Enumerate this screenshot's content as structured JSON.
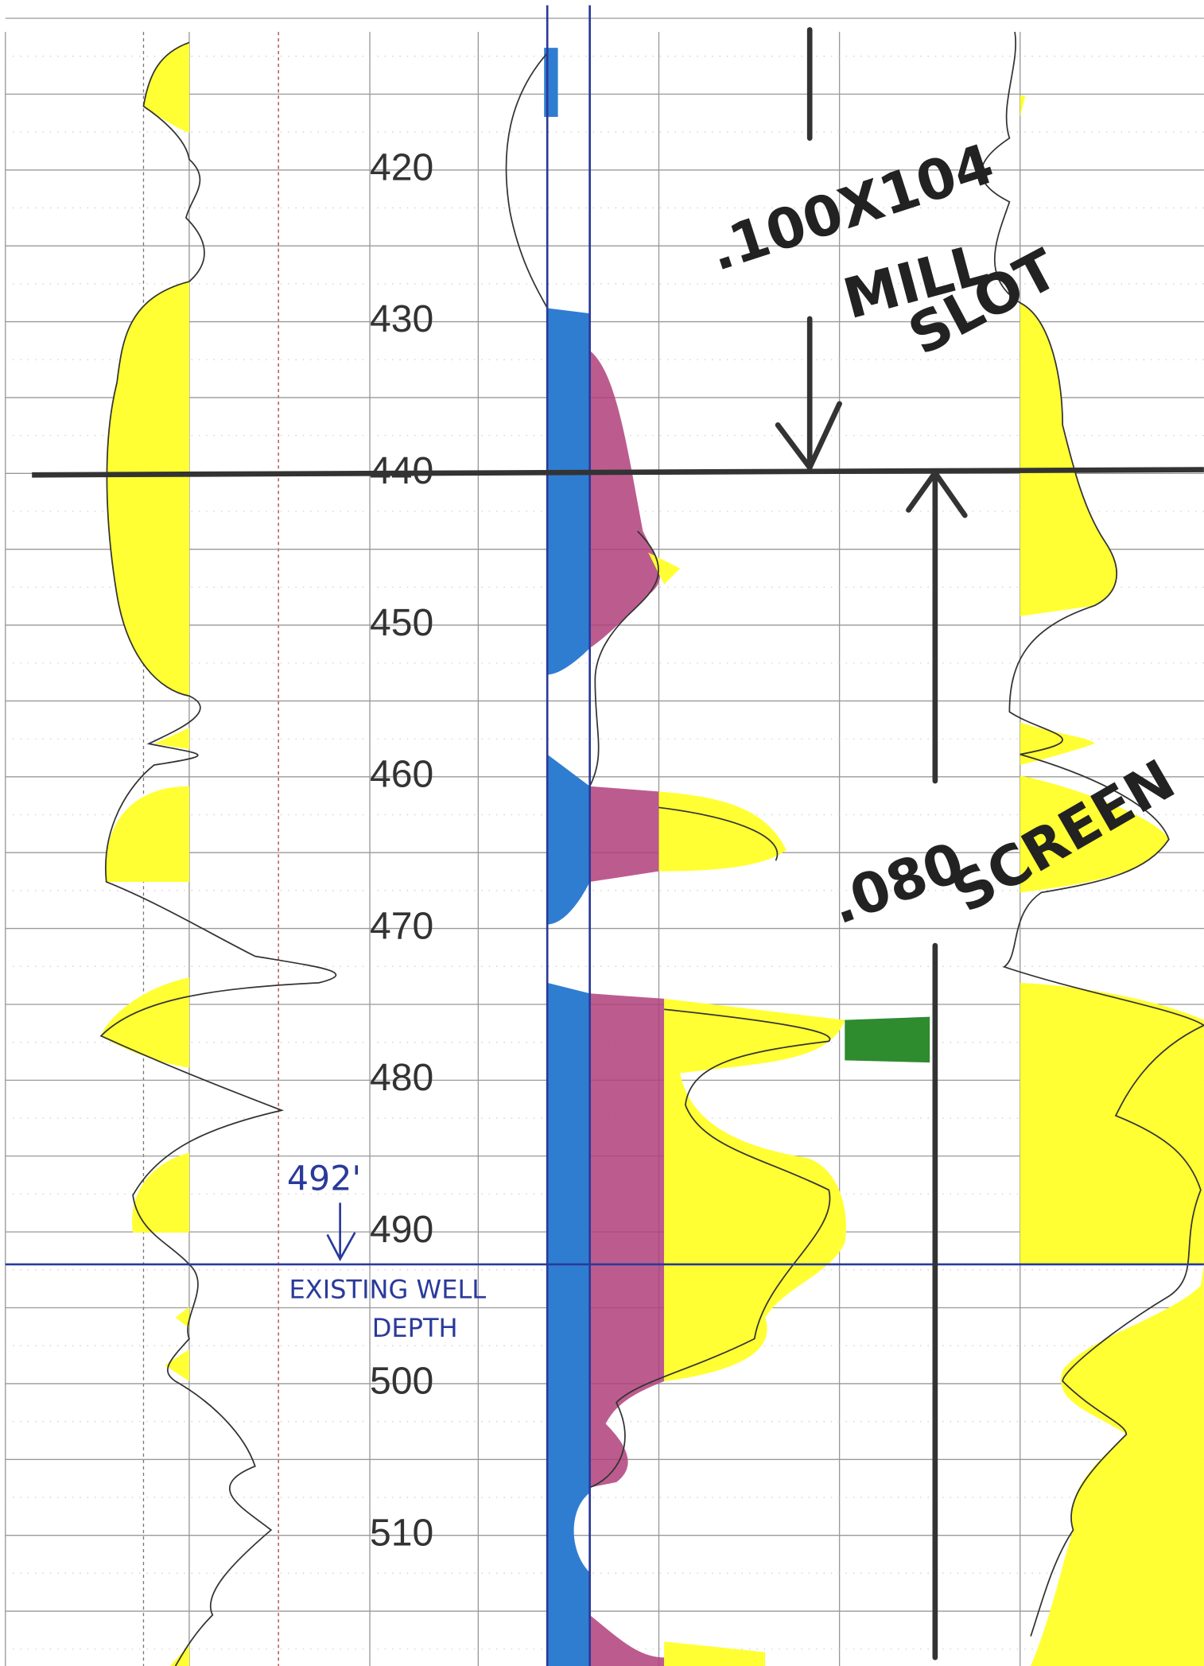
{
  "depth_labels": [
    420,
    430,
    440,
    450,
    460,
    470,
    480,
    490,
    500,
    510
  ],
  "annotations": {
    "mill_slot": {
      "size": ".100X104",
      "line1": "MILL",
      "line2": "SLOT"
    },
    "screen": {
      "size": ".080",
      "label": "SCREEN"
    },
    "existing_well": {
      "depth": "492'",
      "line1": "EXISTING WELL",
      "line2": "DEPTH"
    }
  }
}
